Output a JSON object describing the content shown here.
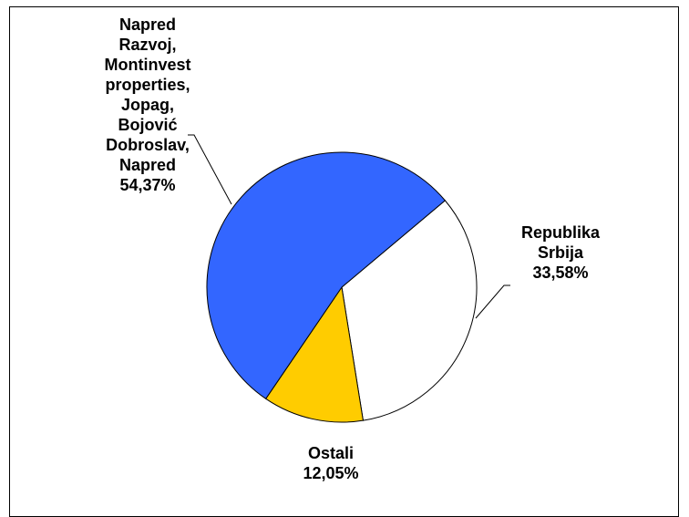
{
  "chart_data": {
    "type": "pie",
    "title": "",
    "slices": [
      {
        "label_lines": [
          "Napred",
          "Razvoj,",
          "Montinvest",
          "properties,",
          "Jopag,",
          "Bojović",
          "Dobroslav,",
          "Napred"
        ],
        "value": 54.37,
        "value_label": "54,37%",
        "color": "#3366FF"
      },
      {
        "label_lines": [
          "Republika",
          "Srbija"
        ],
        "value": 33.58,
        "value_label": "33,58%",
        "color": "#FFFFFF"
      },
      {
        "label_lines": [
          "Ostali"
        ],
        "value": 12.05,
        "value_label": "12,05%",
        "color": "#FFCC00"
      }
    ],
    "legend": "none",
    "border_color": "#000000"
  }
}
